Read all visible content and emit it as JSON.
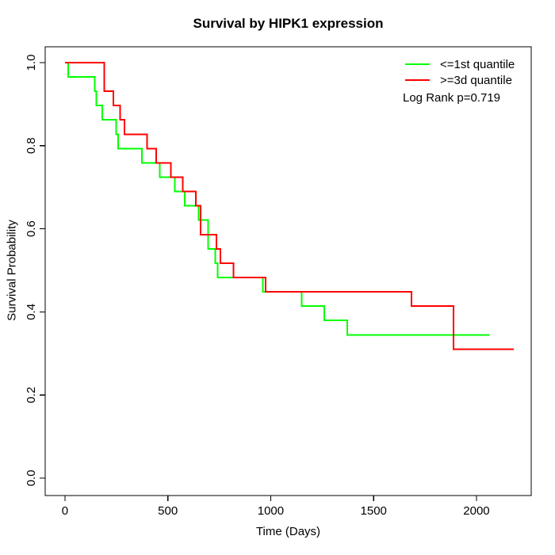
{
  "chart_data": {
    "type": "line",
    "subtype": "kaplan-meier-step-survival",
    "title": "Survival by HIPK1 expression",
    "xlabel": "Time (Days)",
    "ylabel": "Survival Probability",
    "annotation": "Log Rank p=0.719",
    "grid": false,
    "legend_position": "top-right",
    "xlim": [
      -96,
      2266
    ],
    "ylim": [
      -0.042,
      1.038
    ],
    "xticks": [
      {
        "value": 0,
        "label": "0"
      },
      {
        "value": 500,
        "label": "500"
      },
      {
        "value": 1000,
        "label": "1000"
      },
      {
        "value": 1500,
        "label": "1500"
      },
      {
        "value": 2000,
        "label": "2000"
      }
    ],
    "yticks": [
      {
        "value": 0.0,
        "label": "0.0"
      },
      {
        "value": 0.2,
        "label": "0.2"
      },
      {
        "value": 0.4,
        "label": "0.4"
      },
      {
        "value": 0.6,
        "label": "0.6"
      },
      {
        "value": 0.8,
        "label": "0.8"
      },
      {
        "value": 1.0,
        "label": "1.0"
      }
    ],
    "legend": [
      {
        "label": "<=1st quantile",
        "color": "#00ff00"
      },
      {
        "label": ">=3d quantile",
        "color": "#ff0000"
      }
    ],
    "series": [
      {
        "name": "<=1st quantile",
        "color": "#00ff00",
        "start": [
          0,
          1.0
        ],
        "steps": [
          [
            15,
            0.9655
          ],
          [
            144,
            0.931
          ],
          [
            153,
            0.8966
          ],
          [
            182,
            0.8621
          ],
          [
            249,
            0.8276
          ],
          [
            259,
            0.7931
          ],
          [
            375,
            0.7586
          ],
          [
            461,
            0.7241
          ],
          [
            534,
            0.6897
          ],
          [
            583,
            0.6552
          ],
          [
            650,
            0.6207
          ],
          [
            696,
            0.5517
          ],
          [
            731,
            0.5172
          ],
          [
            743,
            0.4828
          ],
          [
            962,
            0.4483
          ],
          [
            1151,
            0.4138
          ],
          [
            1260,
            0.3793
          ],
          [
            1373,
            0.3448
          ]
        ],
        "end_time": 2063
      },
      {
        "name": ">=3d quantile",
        "color": "#ff0000",
        "start": [
          0,
          1.0
        ],
        "steps": [
          [
            192,
            0.931
          ],
          [
            236,
            0.8966
          ],
          [
            268,
            0.8621
          ],
          [
            290,
            0.8276
          ],
          [
            400,
            0.7931
          ],
          [
            444,
            0.7586
          ],
          [
            515,
            0.7241
          ],
          [
            573,
            0.6897
          ],
          [
            637,
            0.6552
          ],
          [
            660,
            0.5862
          ],
          [
            737,
            0.5517
          ],
          [
            756,
            0.5172
          ],
          [
            820,
            0.4828
          ],
          [
            975,
            0.4483
          ],
          [
            1685,
            0.4138
          ],
          [
            1889,
            0.3103
          ]
        ],
        "end_time": 2182
      }
    ]
  }
}
